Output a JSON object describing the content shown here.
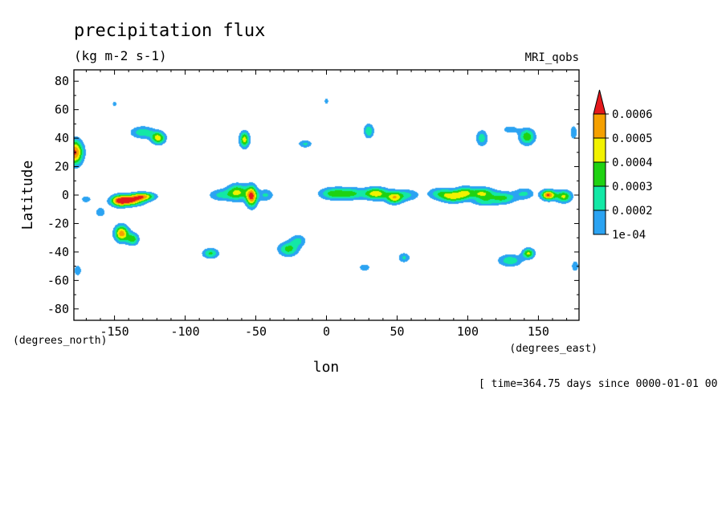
{
  "chart_data": {
    "type": "heatmap",
    "title": "precipitation flux",
    "subtitle": "(kg m-2 s-1)",
    "dataset_label": "MRI_qobs",
    "xlabel": "lon",
    "ylabel": "Latitude",
    "x_unit": "(degrees_east)",
    "y_unit": "(degrees_north)",
    "time_note": "[ time=364.75 days since 0000-01-01 00",
    "xlim": [
      -178.75,
      178.75
    ],
    "ylim": [
      -88,
      88
    ],
    "x_ticks": [
      -150,
      -100,
      -50,
      0,
      50,
      100,
      150
    ],
    "x_tick_labels": [
      "-150",
      "-100",
      "-50",
      "0",
      "50",
      "100",
      "150"
    ],
    "y_ticks": [
      80,
      60,
      40,
      20,
      0,
      -20,
      -40,
      -60,
      -80
    ],
    "y_tick_labels": [
      "80",
      "60",
      "40",
      "20",
      "0",
      "-20",
      "-40",
      "-60",
      "-80"
    ],
    "levels": [
      0.0001,
      0.0002,
      0.0003,
      0.0004,
      0.0005,
      0.0006
    ],
    "level_labels": [
      "1e-04",
      "0.0002",
      "0.0003",
      "0.0004",
      "0.0005",
      "0.0006"
    ],
    "level_colors": [
      "#2ba3f2",
      "#13e8a6",
      "#1fd212",
      "#f2f200",
      "#f5a000",
      "#e5191c"
    ],
    "colorbar_extend": "max",
    "features": [
      {
        "lon": -178,
        "lat": 30,
        "sx": 4,
        "sy": 6,
        "v": 0.00062
      },
      {
        "lon": -140,
        "lat": -4,
        "sx": 7,
        "sy": 2.5,
        "v": 0.00061
      },
      {
        "lon": -130,
        "lat": -1,
        "sx": 6,
        "sy": 2,
        "v": 0.0005
      },
      {
        "lon": -147,
        "lat": -4,
        "sx": 4,
        "sy": 3,
        "v": 0.00035
      },
      {
        "lon": -145,
        "lat": -27,
        "sx": 3.5,
        "sy": 4,
        "v": 0.00056
      },
      {
        "lon": -137,
        "lat": -31,
        "sx": 3,
        "sy": 3,
        "v": 0.00035
      },
      {
        "lon": -130,
        "lat": 44,
        "sx": 6,
        "sy": 3,
        "v": 0.00028
      },
      {
        "lon": -119,
        "lat": 40,
        "sx": 3.5,
        "sy": 3,
        "v": 0.00045
      },
      {
        "lon": -53,
        "lat": -1,
        "sx": 2.8,
        "sy": 5,
        "v": 0.00062
      },
      {
        "lon": -63,
        "lat": 2,
        "sx": 5,
        "sy": 4,
        "v": 0.00042
      },
      {
        "lon": -75,
        "lat": 0,
        "sx": 6,
        "sy": 3,
        "v": 0.00022
      },
      {
        "lon": -43,
        "lat": 0,
        "sx": 4,
        "sy": 3,
        "v": 0.00022
      },
      {
        "lon": -27,
        "lat": -38,
        "sx": 5,
        "sy": 3.5,
        "v": 0.00034
      },
      {
        "lon": -20,
        "lat": -32,
        "sx": 4,
        "sy": 3,
        "v": 0.00022
      },
      {
        "lon": -82,
        "lat": -41,
        "sx": 4,
        "sy": 2.5,
        "v": 0.00032
      },
      {
        "lon": -58,
        "lat": 39,
        "sx": 2.5,
        "sy": 4,
        "v": 0.00045
      },
      {
        "lon": -15,
        "lat": 36,
        "sx": 3.5,
        "sy": 2,
        "v": 0.00022
      },
      {
        "lon": 0,
        "lat": 66,
        "sx": 1.5,
        "sy": 2,
        "v": 0.00014
      },
      {
        "lon": -150,
        "lat": 64,
        "sx": 1.5,
        "sy": 2,
        "v": 0.00014
      },
      {
        "lon": 30,
        "lat": 45,
        "sx": 2.5,
        "sy": 3.5,
        "v": 0.0003
      },
      {
        "lon": 5,
        "lat": 1,
        "sx": 7,
        "sy": 3,
        "v": 0.00035
      },
      {
        "lon": 18,
        "lat": 1,
        "sx": 6,
        "sy": 3,
        "v": 0.00028
      },
      {
        "lon": 35,
        "lat": 1,
        "sx": 6,
        "sy": 3,
        "v": 0.00048
      },
      {
        "lon": 48,
        "lat": -2,
        "sx": 4,
        "sy": 3,
        "v": 0.00043
      },
      {
        "lon": 57,
        "lat": 0,
        "sx": 6,
        "sy": 3,
        "v": 0.00022
      },
      {
        "lon": 90,
        "lat": -1,
        "sx": 6,
        "sy": 3,
        "v": 0.00042
      },
      {
        "lon": 98,
        "lat": 2,
        "sx": 4,
        "sy": 3,
        "v": 0.0003
      },
      {
        "lon": 80,
        "lat": 1,
        "sx": 6,
        "sy": 3,
        "v": 0.00024
      },
      {
        "lon": 110,
        "lat": 1,
        "sx": 6,
        "sy": 3,
        "v": 0.00042
      },
      {
        "lon": 125,
        "lat": -2,
        "sx": 6,
        "sy": 3,
        "v": 0.00032
      },
      {
        "lon": 140,
        "lat": 1,
        "sx": 5,
        "sy": 3,
        "v": 0.00022
      },
      {
        "lon": 157,
        "lat": 0,
        "sx": 3.5,
        "sy": 2.5,
        "v": 0.00061
      },
      {
        "lon": 168,
        "lat": -1,
        "sx": 4,
        "sy": 3,
        "v": 0.00042
      },
      {
        "lon": 112,
        "lat": -5,
        "sx": 6,
        "sy": 2,
        "v": 0.0002
      },
      {
        "lon": 143,
        "lat": -41,
        "sx": 3,
        "sy": 2.5,
        "v": 0.00042
      },
      {
        "lon": 130,
        "lat": -46,
        "sx": 6,
        "sy": 3,
        "v": 0.00028
      },
      {
        "lon": 55,
        "lat": -44,
        "sx": 3,
        "sy": 2.5,
        "v": 0.00022
      },
      {
        "lon": 27,
        "lat": -51,
        "sx": 3,
        "sy": 2,
        "v": 0.00018
      },
      {
        "lon": 110,
        "lat": 40,
        "sx": 3,
        "sy": 4,
        "v": 0.00026
      },
      {
        "lon": 142,
        "lat": 41,
        "sx": 4,
        "sy": 4,
        "v": 0.00038
      },
      {
        "lon": 130,
        "lat": 46,
        "sx": 4,
        "sy": 2,
        "v": 0.00018
      },
      {
        "lon": 175,
        "lat": 44,
        "sx": 2,
        "sy": 4,
        "v": 0.00018
      },
      {
        "lon": 176,
        "lat": -50,
        "sx": 2,
        "sy": 3,
        "v": 0.00018
      },
      {
        "lon": -176,
        "lat": -53,
        "sx": 2,
        "sy": 3,
        "v": 0.00018
      },
      {
        "lon": -170,
        "lat": -3,
        "sx": 3,
        "sy": 2,
        "v": 0.00016
      },
      {
        "lon": -160,
        "lat": -12,
        "sx": 3,
        "sy": 3,
        "v": 0.00016
      }
    ]
  }
}
